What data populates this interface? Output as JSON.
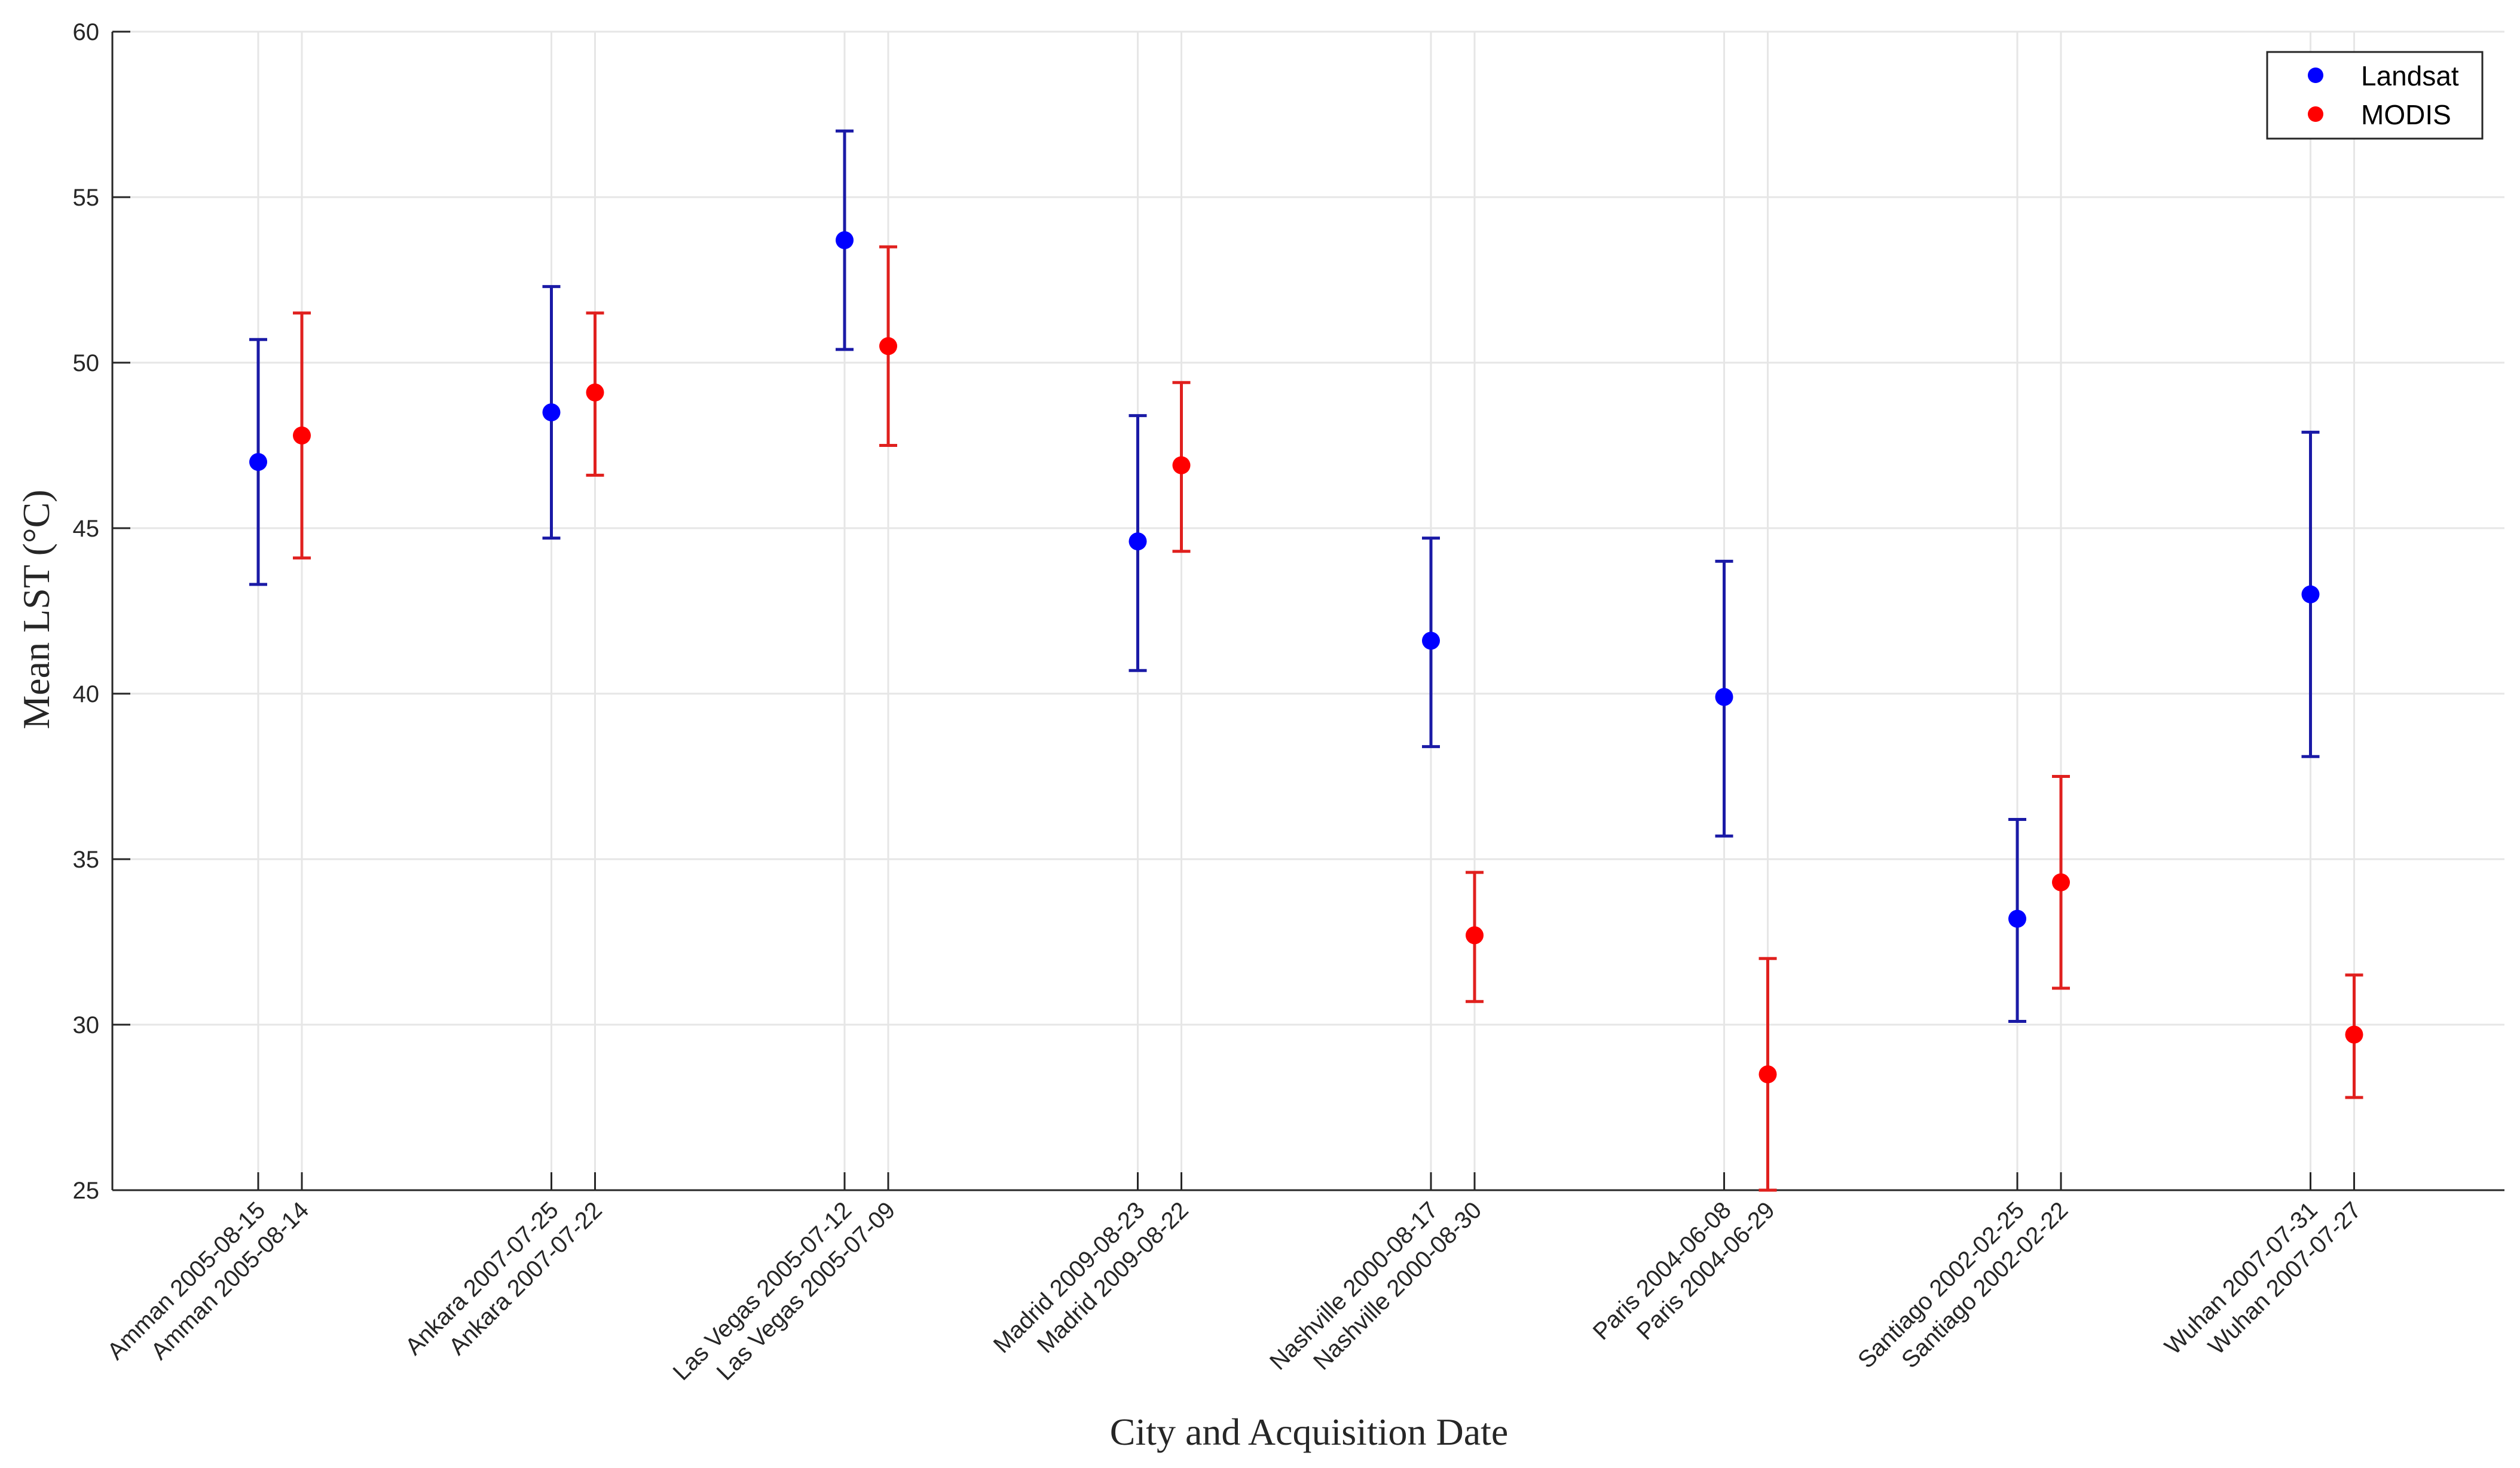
{
  "chart_data": {
    "type": "scatter",
    "title": "",
    "xlabel": "City and Acquisition Date",
    "ylabel": "Mean LST (°C)",
    "ylim": [
      25,
      60
    ],
    "yticks": [
      25,
      30,
      35,
      40,
      45,
      50,
      55,
      60
    ],
    "grid": true,
    "legend_location": "top-right",
    "colors": {
      "Landsat": "#0000ff",
      "MODIS": "#ff0000",
      "Landsat_errorbar": "#1a1aa6",
      "MODIS_errorbar": "#e0201e"
    },
    "categories": [
      "Amman 2005-08-15",
      "Amman 2005-08-14",
      "Ankara 2007-07-25",
      "Ankara 2007-07-22",
      "Las Vegas 2005-07-12",
      "Las Vegas 2005-07-09",
      "Madrid 2009-08-23",
      "Madrid 2009-08-22",
      "Nashville 2000-08-17",
      "Nashville 2000-08-30",
      "Paris 2004-06-08",
      "Paris 2004-06-29",
      "Santiago 2002-02-25",
      "Santiago 2002-02-22",
      "Wuhan 2007-07-31",
      "Wuhan 2007-07-27"
    ],
    "series": [
      {
        "name": "Landsat",
        "category_indices": [
          0,
          2,
          4,
          6,
          8,
          10,
          12,
          14
        ],
        "values": [
          47.0,
          48.5,
          53.7,
          44.6,
          41.6,
          39.9,
          33.2,
          43.0
        ],
        "error_low": [
          43.3,
          44.7,
          50.4,
          40.7,
          38.4,
          35.7,
          30.1,
          38.1
        ],
        "error_high": [
          50.7,
          52.3,
          57.0,
          48.4,
          44.7,
          44.0,
          36.2,
          47.9
        ]
      },
      {
        "name": "MODIS",
        "category_indices": [
          1,
          3,
          5,
          7,
          9,
          11,
          13,
          15
        ],
        "values": [
          47.8,
          49.1,
          50.5,
          46.9,
          32.7,
          28.5,
          34.3,
          29.7
        ],
        "error_low": [
          44.1,
          46.6,
          47.5,
          44.3,
          30.7,
          25.0,
          31.1,
          27.8
        ],
        "error_high": [
          51.5,
          51.5,
          53.5,
          49.4,
          34.6,
          32.0,
          37.5,
          31.5
        ]
      }
    ]
  }
}
